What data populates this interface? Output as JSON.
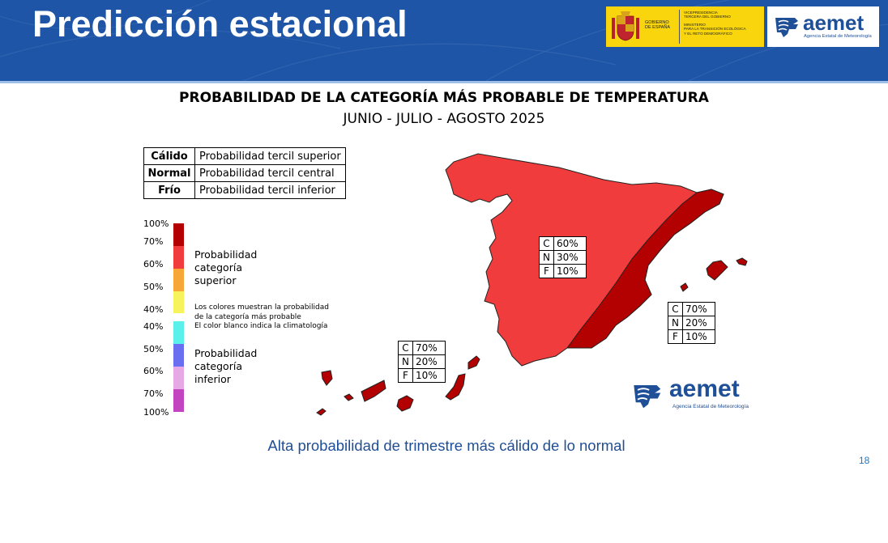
{
  "header": {
    "title": "Predicción estacional",
    "gov_logo": {
      "gobierno_line1": "GOBIERNO",
      "gobierno_line2": "DE ESPAÑA",
      "vp_line1": "VICEPRESIDENCIA",
      "vp_line2": "TERCERA DEL GOBIERNO",
      "min_line1": "MINISTERIO",
      "min_line2": "PARA LA TRANSICIÓN ECOLÓGICA",
      "min_line3": "Y EL RETO DEMOGRÁFICO"
    },
    "aemet_logo": {
      "word": "aemet",
      "subtitle": "Agencia Estatal de Meteorología"
    }
  },
  "map_title": {
    "line1": "PROBABILIDAD DE LA CATEGORÍA MÁS PROBABLE DE TEMPERATURA",
    "line2": "JUNIO - JULIO - AGOSTO 2025"
  },
  "category_table": [
    {
      "category": "Cálido",
      "description": "Probabilidad tercil superior"
    },
    {
      "category": "Normal",
      "description": "Probabilidad tercil central"
    },
    {
      "category": "Frío",
      "description": "Probabilidad tercil inferior"
    }
  ],
  "color_scale": {
    "upper_percents": [
      "100%",
      "70%",
      "60%",
      "50%",
      "40%"
    ],
    "lower_percents": [
      "40%",
      "50%",
      "60%",
      "70%",
      "100%"
    ],
    "upper_colors": [
      "#b30000",
      "#f03c3c",
      "#f7a738",
      "#f7f35c"
    ],
    "neutral_color": "#ffffff",
    "lower_colors": [
      "#5cf0ea",
      "#6a6ef0",
      "#e7a9e6",
      "#c244c0"
    ],
    "upper_label": [
      "Probabilidad",
      "categoría",
      "superior"
    ],
    "lower_label": [
      "Probabilidad",
      "categoría",
      "inferior"
    ],
    "note": [
      "Los colores muestran la probabilidad",
      "de la categoría más probable",
      "El color blanco indica la climatología"
    ]
  },
  "regions": [
    {
      "rows": [
        {
          "key": "C",
          "value": "60%"
        },
        {
          "key": "N",
          "value": "30%"
        },
        {
          "key": "F",
          "value": "10%"
        }
      ],
      "fill": "#f03c3c"
    },
    {
      "rows": [
        {
          "key": "C",
          "value": "70%"
        },
        {
          "key": "N",
          "value": "20%"
        },
        {
          "key": "F",
          "value": "10%"
        }
      ],
      "fill": "#b30000"
    },
    {
      "rows": [
        {
          "key": "C",
          "value": "70%"
        },
        {
          "key": "N",
          "value": "20%"
        },
        {
          "key": "F",
          "value": "10%"
        }
      ],
      "fill": "#b30000"
    }
  ],
  "map_logo": {
    "word": "aemet",
    "subtitle": "Agencia Estatal de Meteorología"
  },
  "caption": "Alta probabilidad de trimestre más cálido de lo normal",
  "page_number": "18"
}
